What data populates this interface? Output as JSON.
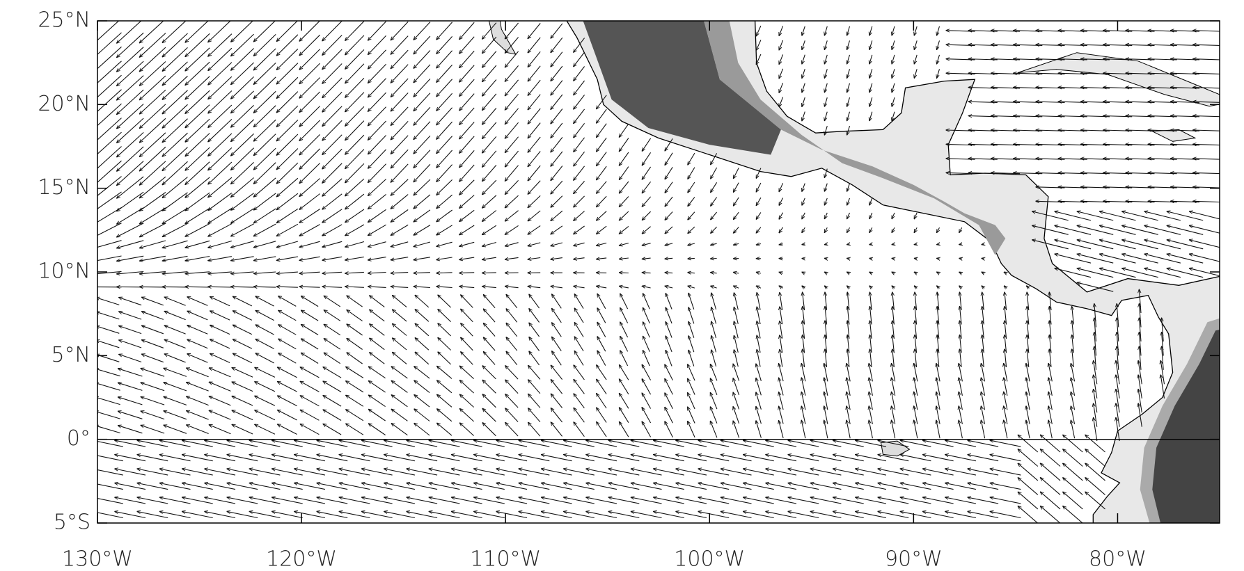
{
  "map": {
    "xlim": [
      -130,
      -75
    ],
    "ylim": [
      -5,
      25
    ],
    "xticks": [
      {
        "value": -130,
        "label": "130°W"
      },
      {
        "value": -120,
        "label": "120°W"
      },
      {
        "value": -110,
        "label": "110°W"
      },
      {
        "value": -100,
        "label": "100°W"
      },
      {
        "value": -90,
        "label": "90°W"
      },
      {
        "value": -80,
        "label": "80°W"
      }
    ],
    "yticks": [
      {
        "value": -5,
        "label": "5°S"
      },
      {
        "value": 0,
        "label": "0°"
      },
      {
        "value": 5,
        "label": "5°N"
      },
      {
        "value": 10,
        "label": "10°N"
      },
      {
        "value": 15,
        "label": "15°N"
      },
      {
        "value": 20,
        "label": "20°N"
      },
      {
        "value": 25,
        "label": "25°N"
      }
    ]
  }
}
